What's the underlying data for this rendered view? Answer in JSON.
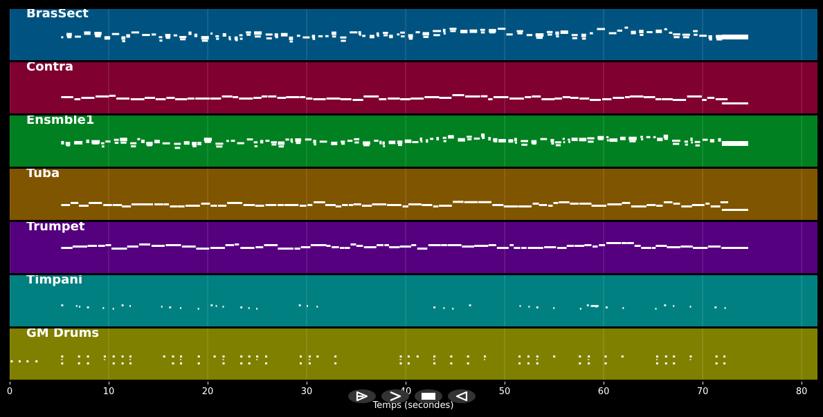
{
  "colors": {
    "background": "#000000",
    "grid": "#ffffff",
    "note": "#ffffff",
    "axis_text": "#ffffff",
    "button_bg": "#333333"
  },
  "tracks": [
    {
      "name": "BrasSect",
      "color": "#005380",
      "pattern": "dense"
    },
    {
      "name": "Contra",
      "color": "#800030",
      "pattern": "bass"
    },
    {
      "name": "Ensmble1",
      "color": "#008020",
      "pattern": "dense"
    },
    {
      "name": "Tuba",
      "color": "#805500",
      "pattern": "bass"
    },
    {
      "name": "Trumpet",
      "color": "#55007f",
      "pattern": "melody"
    },
    {
      "name": "Timpani",
      "color": "#008080",
      "pattern": "sparse"
    },
    {
      "name": "GM Drums",
      "color": "#808000",
      "pattern": "drums"
    }
  ],
  "axis": {
    "title": "Temps (secondes)",
    "min": 0,
    "max": 81.6,
    "ticks": [
      "0",
      "10",
      "20",
      "30",
      "40",
      "50",
      "60",
      "70",
      "80"
    ],
    "notes_start": 5.2,
    "notes_end": 74.6
  },
  "controls": [
    {
      "name": "play-button",
      "icon": "play-outline-icon"
    },
    {
      "name": "forward-button",
      "icon": "chevron-right-icon"
    },
    {
      "name": "stop-button",
      "icon": "stop-icon"
    },
    {
      "name": "rewind-button",
      "icon": "rewind-icon"
    }
  ]
}
